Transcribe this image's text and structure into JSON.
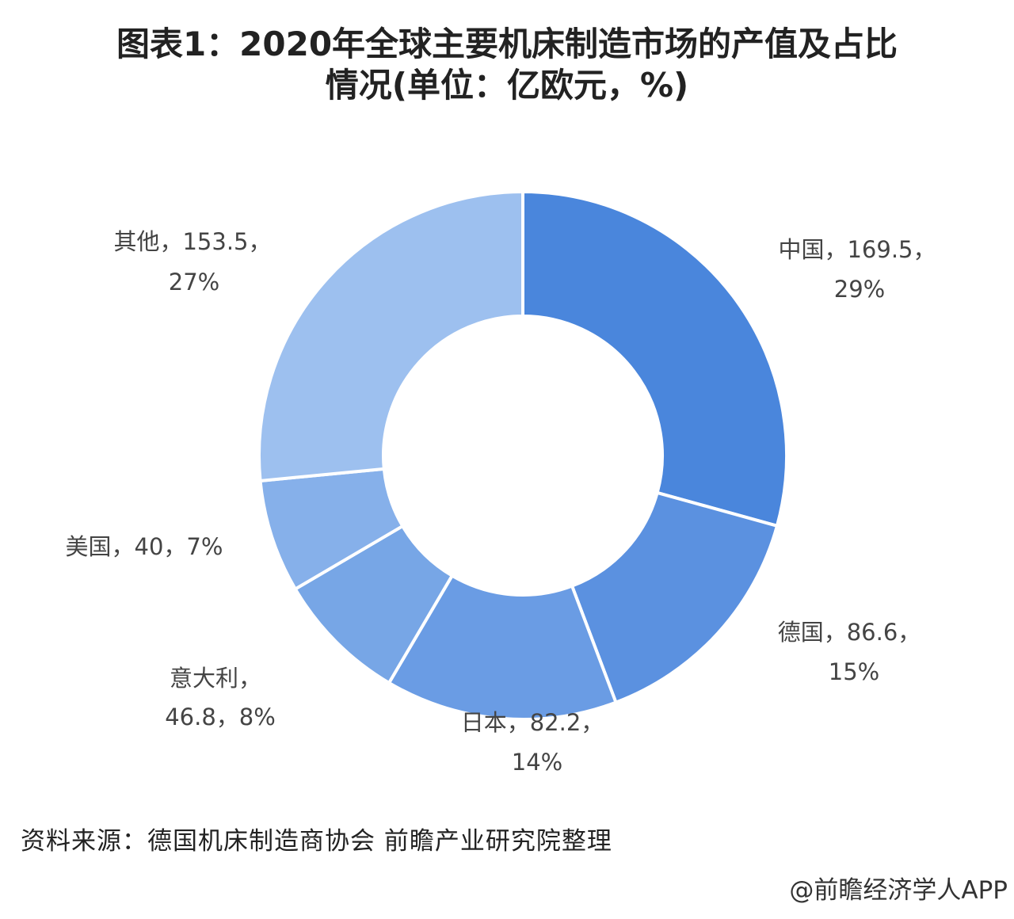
{
  "title_line1": "图表1：2020年全球主要机床制造市场的产值及占比",
  "title_line2": "情况(单位：亿欧元，%)",
  "source": "资料来源：德国机床制造商协会 前瞻产业研究院整理",
  "credit": "@前瞻经济学人APP",
  "chart_data": {
    "type": "pie",
    "donut": true,
    "title": "图表1：2020年全球主要机床制造市场的产值及占比情况(单位：亿欧元，%)",
    "unit": "亿欧元",
    "slices": [
      {
        "label": "中国",
        "value": 169.5,
        "percent": "29%",
        "text1": "中国，169.5，",
        "text2": "29%",
        "color": "#4a86dc"
      },
      {
        "label": "德国",
        "value": 86.6,
        "percent": "15%",
        "text1": "德国，86.6，",
        "text2": "15%",
        "color": "#5b91e0"
      },
      {
        "label": "日本",
        "value": 82.2,
        "percent": "14%",
        "text1": "日本，82.2，",
        "text2": "14%",
        "color": "#6a9ce4"
      },
      {
        "label": "意大利",
        "value": 46.8,
        "percent": "8%",
        "text1": "意大利，",
        "text2": "46.8，8%",
        "color": "#77a6e6"
      },
      {
        "label": "美国",
        "value": 40,
        "percent": "7%",
        "text1": "美国，40，7%",
        "text2": "",
        "color": "#86b0ea"
      },
      {
        "label": "其他",
        "value": 153.5,
        "percent": "27%",
        "text1": "其他，153.5，",
        "text2": "27%",
        "color": "#9dc0ef"
      }
    ],
    "legend": "none"
  }
}
